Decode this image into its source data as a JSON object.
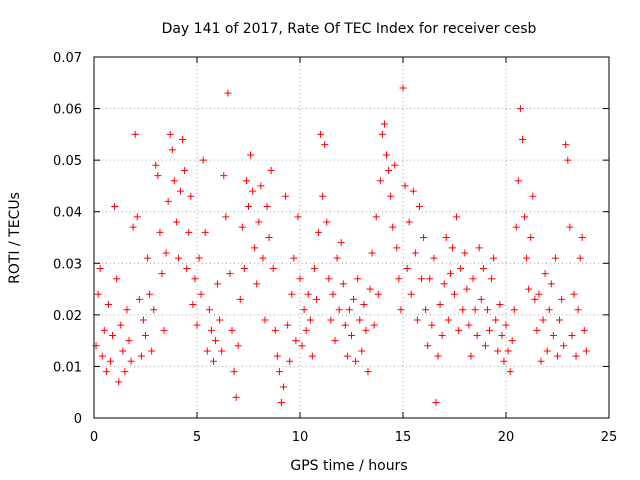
{
  "chart_data": {
    "type": "scatter",
    "title": "Day 141 of 2017, Rate Of TEC Index for receiver cesb",
    "xlabel": "GPS time / hours",
    "ylabel": "ROTI / TECUs",
    "xlim": [
      0,
      25
    ],
    "ylim": [
      0,
      0.07
    ],
    "xticks": [
      0,
      5,
      10,
      15,
      20,
      25
    ],
    "xtick_labels": [
      "0",
      "5",
      "10",
      "15",
      "20",
      "25"
    ],
    "yticks": [
      0,
      0.01,
      0.02,
      0.03,
      0.04,
      0.05,
      0.06,
      0.07
    ],
    "ytick_labels": [
      "0",
      "0.01",
      "0.02",
      "0.03",
      "0.04",
      "0.05",
      "0.06",
      "0.07"
    ],
    "grid": true,
    "marker": "plus",
    "color": "#ff0000",
    "series": [
      {
        "points": [
          [
            0.1,
            0.014
          ],
          [
            0.2,
            0.024
          ],
          [
            0.3,
            0.029
          ],
          [
            0.4,
            0.012
          ],
          [
            0.5,
            0.017
          ],
          [
            0.6,
            0.009
          ],
          [
            0.7,
            0.022
          ],
          [
            0.8,
            0.011
          ],
          [
            0.9,
            0.016
          ],
          [
            1.0,
            0.041
          ],
          [
            1.1,
            0.027
          ],
          [
            1.2,
            0.007
          ],
          [
            1.3,
            0.018
          ],
          [
            1.4,
            0.013
          ],
          [
            1.5,
            0.009
          ],
          [
            1.6,
            0.021
          ],
          [
            1.7,
            0.015
          ],
          [
            1.8,
            0.011
          ],
          [
            1.9,
            0.037
          ],
          [
            2.0,
            0.055
          ],
          [
            2.1,
            0.039
          ],
          [
            2.2,
            0.023
          ],
          [
            2.3,
            0.012
          ],
          [
            2.4,
            0.019
          ],
          [
            2.5,
            0.016
          ],
          [
            2.6,
            0.031
          ],
          [
            2.7,
            0.024
          ],
          [
            2.8,
            0.013
          ],
          [
            2.9,
            0.021
          ],
          [
            3.0,
            0.049
          ],
          [
            3.1,
            0.047
          ],
          [
            3.2,
            0.036
          ],
          [
            3.3,
            0.028
          ],
          [
            3.4,
            0.017
          ],
          [
            3.5,
            0.032
          ],
          [
            3.6,
            0.042
          ],
          [
            3.7,
            0.055
          ],
          [
            3.8,
            0.052
          ],
          [
            3.9,
            0.046
          ],
          [
            4.0,
            0.038
          ],
          [
            4.1,
            0.031
          ],
          [
            4.2,
            0.044
          ],
          [
            4.3,
            0.054
          ],
          [
            4.4,
            0.048
          ],
          [
            4.5,
            0.029
          ],
          [
            4.6,
            0.036
          ],
          [
            4.7,
            0.043
          ],
          [
            4.8,
            0.022
          ],
          [
            4.9,
            0.027
          ],
          [
            5.0,
            0.018
          ],
          [
            5.1,
            0.031
          ],
          [
            5.2,
            0.024
          ],
          [
            5.3,
            0.05
          ],
          [
            5.4,
            0.036
          ],
          [
            5.5,
            0.013
          ],
          [
            5.6,
            0.021
          ],
          [
            5.7,
            0.017
          ],
          [
            5.8,
            0.011
          ],
          [
            5.9,
            0.015
          ],
          [
            6.0,
            0.026
          ],
          [
            6.1,
            0.019
          ],
          [
            6.2,
            0.013
          ],
          [
            6.3,
            0.047
          ],
          [
            6.4,
            0.039
          ],
          [
            6.5,
            0.063
          ],
          [
            6.6,
            0.028
          ],
          [
            6.7,
            0.017
          ],
          [
            6.8,
            0.009
          ],
          [
            6.9,
            0.004
          ],
          [
            7.0,
            0.014
          ],
          [
            7.1,
            0.023
          ],
          [
            7.2,
            0.037
          ],
          [
            7.3,
            0.029
          ],
          [
            7.4,
            0.046
          ],
          [
            7.5,
            0.041
          ],
          [
            7.6,
            0.051
          ],
          [
            7.7,
            0.044
          ],
          [
            7.8,
            0.033
          ],
          [
            7.9,
            0.026
          ],
          [
            8.0,
            0.038
          ],
          [
            8.1,
            0.045
          ],
          [
            8.2,
            0.031
          ],
          [
            8.3,
            0.019
          ],
          [
            8.4,
            0.041
          ],
          [
            8.5,
            0.035
          ],
          [
            8.6,
            0.048
          ],
          [
            8.7,
            0.029
          ],
          [
            8.8,
            0.017
          ],
          [
            8.9,
            0.012
          ],
          [
            9.0,
            0.009
          ],
          [
            9.1,
            0.003
          ],
          [
            9.2,
            0.006
          ],
          [
            9.3,
            0.043
          ],
          [
            9.4,
            0.018
          ],
          [
            9.5,
            0.011
          ],
          [
            9.6,
            0.024
          ],
          [
            9.7,
            0.031
          ],
          [
            9.8,
            0.015
          ],
          [
            9.9,
            0.039
          ],
          [
            10.0,
            0.027
          ],
          [
            10.1,
            0.014
          ],
          [
            10.2,
            0.021
          ],
          [
            10.3,
            0.017
          ],
          [
            10.4,
            0.024
          ],
          [
            10.5,
            0.019
          ],
          [
            10.6,
            0.012
          ],
          [
            10.7,
            0.029
          ],
          [
            10.8,
            0.023
          ],
          [
            10.9,
            0.036
          ],
          [
            11.0,
            0.055
          ],
          [
            11.1,
            0.043
          ],
          [
            11.2,
            0.053
          ],
          [
            11.3,
            0.038
          ],
          [
            11.4,
            0.027
          ],
          [
            11.5,
            0.019
          ],
          [
            11.6,
            0.024
          ],
          [
            11.7,
            0.015
          ],
          [
            11.8,
            0.031
          ],
          [
            11.9,
            0.021
          ],
          [
            12.0,
            0.034
          ],
          [
            12.1,
            0.026
          ],
          [
            12.2,
            0.018
          ],
          [
            12.3,
            0.012
          ],
          [
            12.4,
            0.021
          ],
          [
            12.5,
            0.016
          ],
          [
            12.6,
            0.023
          ],
          [
            12.7,
            0.011
          ],
          [
            12.8,
            0.027
          ],
          [
            12.9,
            0.019
          ],
          [
            13.0,
            0.013
          ],
          [
            13.1,
            0.022
          ],
          [
            13.2,
            0.017
          ],
          [
            13.3,
            0.009
          ],
          [
            13.4,
            0.025
          ],
          [
            13.5,
            0.032
          ],
          [
            13.6,
            0.018
          ],
          [
            13.7,
            0.039
          ],
          [
            13.8,
            0.024
          ],
          [
            13.9,
            0.046
          ],
          [
            14.0,
            0.055
          ],
          [
            14.1,
            0.057
          ],
          [
            14.2,
            0.051
          ],
          [
            14.3,
            0.048
          ],
          [
            14.4,
            0.043
          ],
          [
            14.5,
            0.037
          ],
          [
            14.6,
            0.049
          ],
          [
            14.7,
            0.033
          ],
          [
            14.8,
            0.027
          ],
          [
            14.9,
            0.021
          ],
          [
            15.0,
            0.064
          ],
          [
            15.1,
            0.045
          ],
          [
            15.2,
            0.029
          ],
          [
            15.3,
            0.038
          ],
          [
            15.4,
            0.024
          ],
          [
            15.5,
            0.044
          ],
          [
            15.6,
            0.032
          ],
          [
            15.7,
            0.019
          ],
          [
            15.8,
            0.041
          ],
          [
            15.9,
            0.027
          ],
          [
            16.0,
            0.035
          ],
          [
            16.1,
            0.021
          ],
          [
            16.2,
            0.014
          ],
          [
            16.3,
            0.027
          ],
          [
            16.4,
            0.018
          ],
          [
            16.5,
            0.031
          ],
          [
            16.6,
            0.003
          ],
          [
            16.7,
            0.012
          ],
          [
            16.8,
            0.022
          ],
          [
            16.9,
            0.016
          ],
          [
            17.0,
            0.026
          ],
          [
            17.1,
            0.035
          ],
          [
            17.2,
            0.019
          ],
          [
            17.3,
            0.028
          ],
          [
            17.4,
            0.033
          ],
          [
            17.5,
            0.024
          ],
          [
            17.6,
            0.039
          ],
          [
            17.7,
            0.017
          ],
          [
            17.8,
            0.029
          ],
          [
            17.9,
            0.021
          ],
          [
            18.0,
            0.032
          ],
          [
            18.1,
            0.025
          ],
          [
            18.2,
            0.018
          ],
          [
            18.3,
            0.012
          ],
          [
            18.4,
            0.027
          ],
          [
            18.5,
            0.021
          ],
          [
            18.6,
            0.016
          ],
          [
            18.7,
            0.033
          ],
          [
            18.8,
            0.023
          ],
          [
            18.9,
            0.029
          ],
          [
            19.0,
            0.014
          ],
          [
            19.1,
            0.021
          ],
          [
            19.2,
            0.017
          ],
          [
            19.3,
            0.027
          ],
          [
            19.4,
            0.031
          ],
          [
            19.5,
            0.019
          ],
          [
            19.6,
            0.013
          ],
          [
            19.7,
            0.022
          ],
          [
            19.8,
            0.016
          ],
          [
            19.9,
            0.011
          ],
          [
            20.0,
            0.018
          ],
          [
            20.1,
            0.013
          ],
          [
            20.2,
            0.009
          ],
          [
            20.3,
            0.015
          ],
          [
            20.4,
            0.021
          ],
          [
            20.5,
            0.037
          ],
          [
            20.6,
            0.046
          ],
          [
            20.7,
            0.06
          ],
          [
            20.8,
            0.054
          ],
          [
            20.9,
            0.039
          ],
          [
            21.0,
            0.031
          ],
          [
            21.1,
            0.025
          ],
          [
            21.2,
            0.035
          ],
          [
            21.3,
            0.043
          ],
          [
            21.4,
            0.023
          ],
          [
            21.5,
            0.017
          ],
          [
            21.6,
            0.024
          ],
          [
            21.7,
            0.011
          ],
          [
            21.8,
            0.019
          ],
          [
            21.9,
            0.028
          ],
          [
            22.0,
            0.013
          ],
          [
            22.1,
            0.021
          ],
          [
            22.2,
            0.026
          ],
          [
            22.3,
            0.016
          ],
          [
            22.4,
            0.031
          ],
          [
            22.5,
            0.012
          ],
          [
            22.6,
            0.019
          ],
          [
            22.7,
            0.023
          ],
          [
            22.8,
            0.014
          ],
          [
            22.9,
            0.053
          ],
          [
            23.0,
            0.05
          ],
          [
            23.1,
            0.037
          ],
          [
            23.2,
            0.016
          ],
          [
            23.3,
            0.024
          ],
          [
            23.4,
            0.012
          ],
          [
            23.5,
            0.021
          ],
          [
            23.6,
            0.031
          ],
          [
            23.7,
            0.035
          ],
          [
            23.8,
            0.017
          ],
          [
            23.9,
            0.013
          ]
        ]
      }
    ]
  }
}
